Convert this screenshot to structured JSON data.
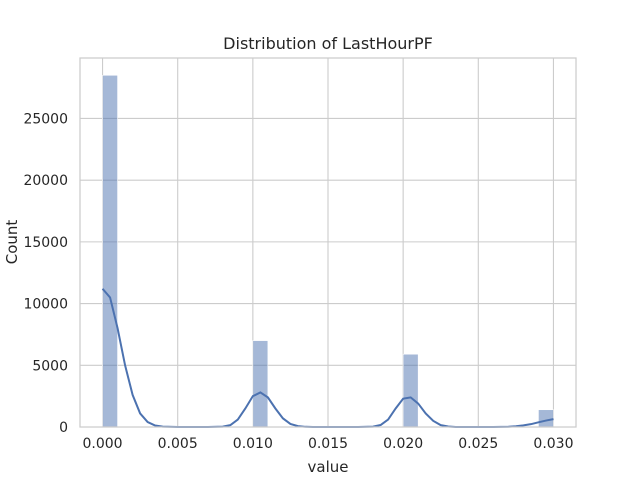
{
  "chart_data": {
    "type": "bar",
    "title": "Distribution of LastHourPF",
    "xlabel": "value",
    "ylabel": "Count",
    "xlim": [
      -0.0015,
      0.0315
    ],
    "ylim": [
      0,
      29900
    ],
    "xticks": [
      0.0,
      0.005,
      0.01,
      0.015,
      0.02,
      0.025,
      0.03
    ],
    "xtick_labels": [
      "0.000",
      "0.005",
      "0.010",
      "0.015",
      "0.020",
      "0.025",
      "0.030"
    ],
    "yticks": [
      0,
      5000,
      10000,
      15000,
      20000,
      25000
    ],
    "ytick_labels": [
      "0",
      "5000",
      "10000",
      "15000",
      "20000",
      "25000"
    ],
    "grid": true,
    "bins": [
      {
        "x0": 0.0,
        "x1": 0.001,
        "count": 28500
      },
      {
        "x0": 0.01,
        "x1": 0.011,
        "count": 7000
      },
      {
        "x0": 0.02,
        "x1": 0.021,
        "count": 5900
      },
      {
        "x0": 0.029,
        "x1": 0.03,
        "count": 1400
      }
    ],
    "kde": {
      "x": [
        0.0,
        0.0005,
        0.001,
        0.0015,
        0.002,
        0.0025,
        0.003,
        0.0035,
        0.004,
        0.005,
        0.006,
        0.007,
        0.008,
        0.0085,
        0.009,
        0.0095,
        0.01,
        0.0105,
        0.011,
        0.0115,
        0.012,
        0.0125,
        0.013,
        0.0135,
        0.014,
        0.015,
        0.016,
        0.017,
        0.018,
        0.0185,
        0.019,
        0.0195,
        0.02,
        0.0205,
        0.021,
        0.0215,
        0.022,
        0.0225,
        0.023,
        0.0235,
        0.024,
        0.025,
        0.026,
        0.027,
        0.0275,
        0.028,
        0.0285,
        0.029,
        0.0295,
        0.03
      ],
      "y": [
        11200,
        10500,
        8000,
        5000,
        2600,
        1100,
        400,
        120,
        30,
        0,
        0,
        0,
        30,
        150,
        600,
        1500,
        2500,
        2800,
        2400,
        1500,
        700,
        250,
        70,
        15,
        0,
        0,
        0,
        0,
        30,
        160,
        600,
        1500,
        2300,
        2400,
        1900,
        1100,
        500,
        150,
        40,
        0,
        0,
        0,
        0,
        20,
        60,
        130,
        230,
        380,
        520,
        640
      ]
    }
  }
}
